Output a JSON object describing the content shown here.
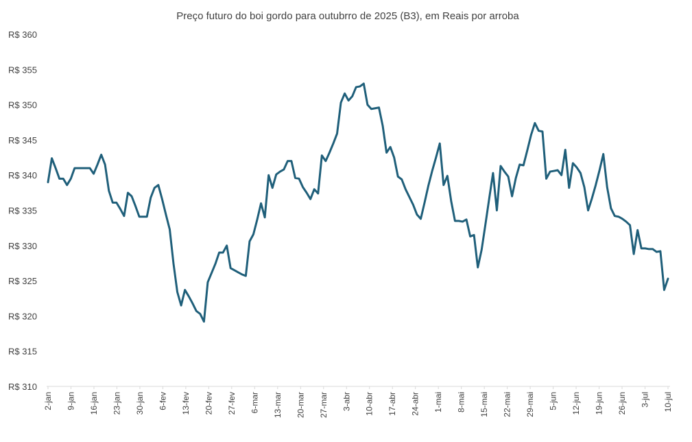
{
  "chart_data": {
    "type": "line",
    "title": "Preço futuro do boi gordo para outubrro de 2025 (B3), em Reais por arroba",
    "xlabel": "",
    "ylabel": "",
    "ylim": [
      310,
      360
    ],
    "y_ticks": [
      310,
      315,
      320,
      325,
      330,
      335,
      340,
      345,
      350,
      355,
      360
    ],
    "y_tick_prefix": "R$ ",
    "x_tick_labels": [
      "2-jan",
      "9-jan",
      "16-jan",
      "23-jan",
      "30-jan",
      "6-fev",
      "13-fev",
      "20-fev",
      "27-fev",
      "6-mar",
      "13-mar",
      "20-mar",
      "27-mar",
      "3-abr",
      "10-abr",
      "17-abr",
      "24-abr",
      "1-mai",
      "8-mai",
      "15-mai",
      "22-mai",
      "29-mai",
      "5-jun",
      "12-jun",
      "19-jun",
      "26-jun",
      "3-jul",
      "10-jul"
    ],
    "grid": false,
    "line_color": "#1f5f7a",
    "series": [
      {
        "values": [
          339.0,
          342.4,
          341.0,
          339.5,
          339.5,
          338.6,
          339.5,
          341.0,
          341.0,
          341.0,
          341.0,
          341.0,
          340.2,
          341.5,
          342.9,
          341.5,
          337.8,
          336.1,
          336.1,
          335.2,
          334.2,
          337.5,
          337.0,
          335.6,
          334.1,
          334.1,
          334.1,
          336.8,
          338.2,
          338.6,
          336.6,
          334.4,
          332.3,
          327.4,
          323.4,
          321.5,
          323.7,
          322.8,
          321.8,
          320.7,
          320.3,
          319.2,
          324.8,
          326.1,
          327.4,
          329.0,
          329.0,
          330.0,
          326.8,
          326.5,
          326.2,
          325.9,
          325.7,
          330.6,
          331.6,
          333.7,
          336.0,
          334.0,
          340.0,
          338.2,
          340.1,
          340.5,
          340.8,
          342.0,
          342.0,
          339.6,
          339.5,
          338.3,
          337.5,
          336.6,
          338.0,
          337.4,
          342.8,
          342.0,
          343.2,
          344.5,
          345.9,
          350.3,
          351.6,
          350.6,
          351.2,
          352.5,
          352.6,
          353.0,
          350.0,
          349.4,
          349.5,
          349.6,
          347.0,
          343.2,
          344.0,
          342.5,
          339.8,
          339.4,
          338.0,
          336.9,
          335.8,
          334.4,
          333.8,
          336.1,
          338.5,
          340.6,
          342.5,
          344.5,
          338.6,
          339.9,
          336.3,
          333.5,
          333.5,
          333.4,
          333.7,
          331.3,
          331.5,
          326.9,
          329.4,
          333.0,
          336.7,
          340.3,
          335.0,
          341.3,
          340.5,
          339.8,
          337.0,
          339.6,
          341.5,
          341.4,
          343.5,
          345.7,
          347.4,
          346.3,
          346.2,
          339.5,
          340.5,
          340.6,
          340.7,
          340.0,
          343.6,
          338.2,
          341.7,
          341.1,
          340.3,
          338.3,
          335.0,
          336.7,
          338.6,
          340.7,
          343.0,
          338.3,
          335.3,
          334.2,
          334.1,
          333.8,
          333.4,
          332.9,
          328.8,
          332.2,
          329.6,
          329.6,
          329.5,
          329.5,
          329.1,
          329.2,
          323.7,
          325.3
        ]
      }
    ]
  }
}
